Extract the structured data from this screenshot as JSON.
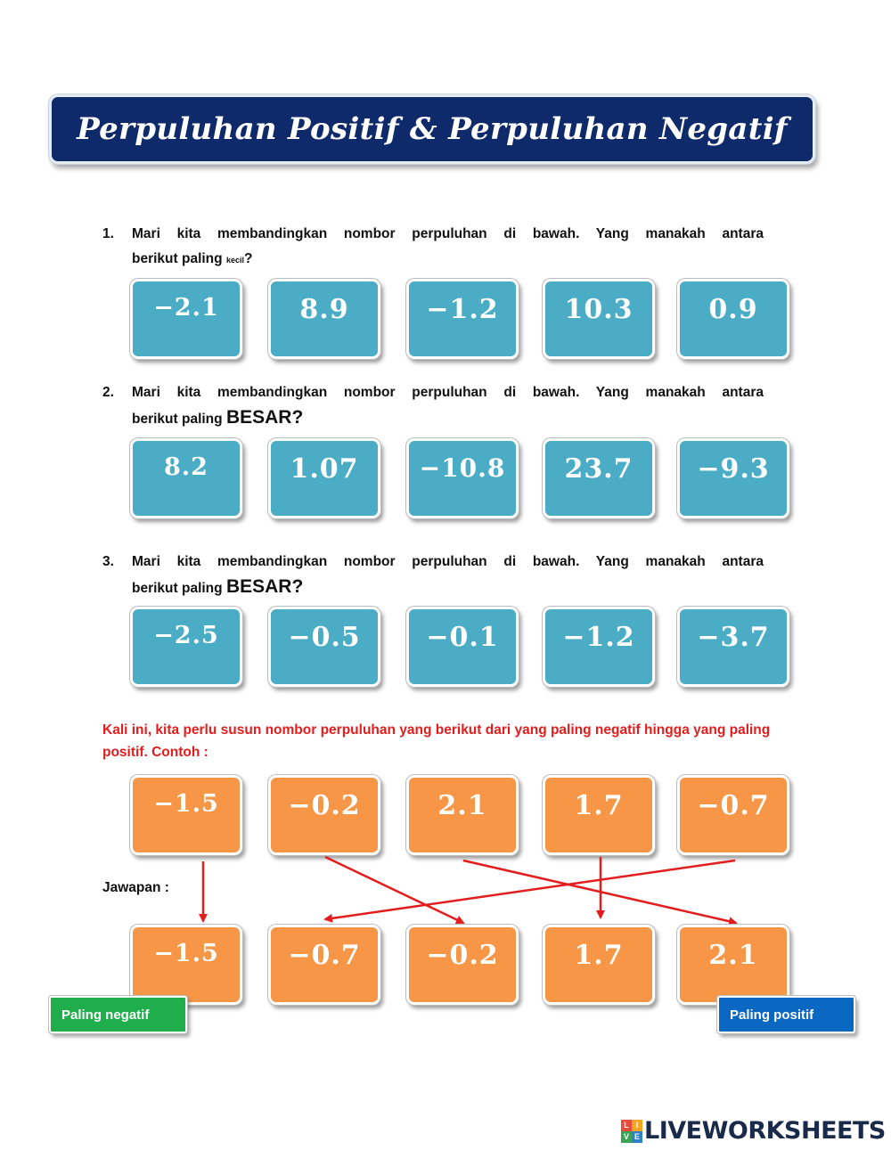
{
  "banner": {
    "title": "Perpuluhan Positif & Perpuluhan Negatif"
  },
  "questions": [
    {
      "number": "1.",
      "line1": "Mari kita membandingkan nombor perpuluhan di bawah. Yang manakah antara",
      "line2_prefix": "berikut paling ",
      "line2_keyword": "kecil",
      "line2_suffix": "?",
      "options": [
        "−2.1",
        "8.9",
        "−1.2",
        "10.3",
        "0.9"
      ]
    },
    {
      "number": "2.",
      "line1": "Mari kita membandingkan nombor perpuluhan di bawah. Yang manakah antara",
      "line2_prefix": "berikut paling ",
      "line2_keyword": "BESAR?",
      "line2_suffix": "",
      "options": [
        "8.2",
        "1.07",
        "−10.8",
        "23.7",
        "−9.3"
      ]
    },
    {
      "number": "3.",
      "line1": "Mari kita membandingkan nombor perpuluhan di bawah. Yang manakah antara",
      "line2_prefix": "berikut paling ",
      "line2_keyword": "BESAR?",
      "line2_suffix": "",
      "options": [
        "−2.5",
        "−0.5",
        "−0.1",
        "−1.2",
        "−3.7"
      ]
    }
  ],
  "example": {
    "instruction": "Kali ini, kita perlu susun nombor perpuluhan yang berikut dari yang paling negatif hingga yang paling positif. Contoh :",
    "given": [
      "−1.5",
      "−0.2",
      "2.1",
      "1.7",
      "−0.7"
    ],
    "answer_label": "Jawapan :",
    "answer": [
      "−1.5",
      "−0.7",
      "−0.2",
      "1.7",
      "2.1"
    ]
  },
  "labels": {
    "most_negative": "Paling negatif",
    "most_positive": "Paling positif"
  },
  "footer": {
    "logo_text": "LIVEWORKSHEETS",
    "logo_letters": [
      "L",
      "I",
      "V",
      "E"
    ],
    "logo_colors": [
      "#e94b3c",
      "#f6a623",
      "#3aa655",
      "#2f80c8"
    ]
  },
  "colors": {
    "banner": "#0f2a6b",
    "question_box": "#4bacc6",
    "example_box": "#f79646",
    "arrow": "#e31d1d"
  }
}
